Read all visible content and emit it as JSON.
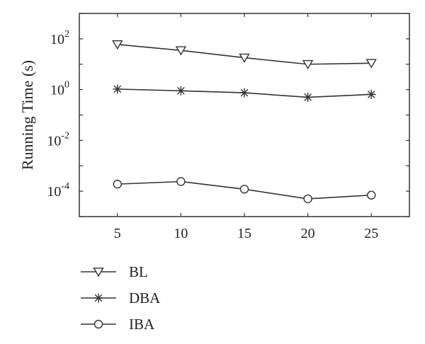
{
  "chart_data": {
    "type": "line",
    "title": "",
    "xlabel": "",
    "ylabel": "Running Time (s)",
    "yscale": "log",
    "x": [
      5,
      10,
      15,
      20,
      25
    ],
    "xlim": [
      2,
      28
    ],
    "ylim": [
      1e-05,
      1000
    ],
    "xticks": [
      "5",
      "10",
      "15",
      "20",
      "25"
    ],
    "yticks": [
      {
        "base": "10",
        "exp": "2",
        "value": 100
      },
      {
        "base": "10",
        "exp": "0",
        "value": 1
      },
      {
        "base": "10",
        "exp": "-2",
        "value": 0.01
      },
      {
        "base": "10",
        "exp": "-4",
        "value": 0.0001
      }
    ],
    "grid": false,
    "legend_position": "bottom-left",
    "series": [
      {
        "name": "BL",
        "marker": "triangle-down",
        "values": [
          60,
          35,
          18,
          10,
          11
        ]
      },
      {
        "name": "DBA",
        "marker": "asterisk",
        "values": [
          1.05,
          0.9,
          0.75,
          0.5,
          0.65
        ]
      },
      {
        "name": "IBA",
        "marker": "circle",
        "values": [
          0.00019,
          0.00024,
          0.00012,
          5e-05,
          7e-05
        ]
      }
    ],
    "line_color": "#333333"
  }
}
